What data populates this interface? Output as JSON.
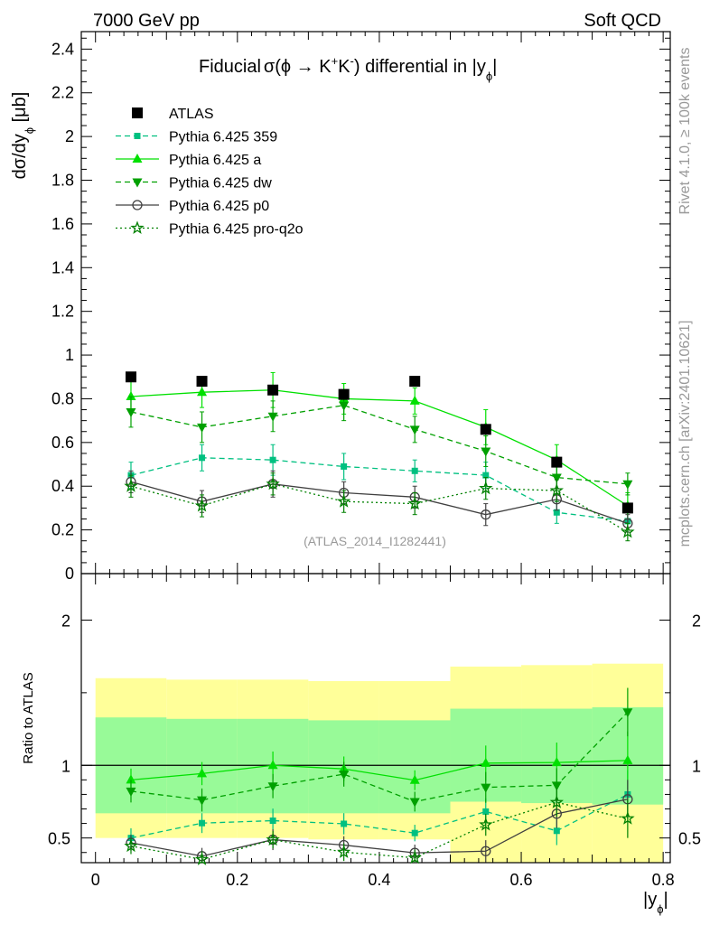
{
  "header": {
    "left": "7000 GeV pp",
    "right": "Soft QCD"
  },
  "watermark": {
    "rivet": "Rivet 4.1.0, ≥ 100k events",
    "mcplots": "mcplots.cern.ch [arXiv:2401.10621]"
  },
  "analysis_id": "(ATLAS_2014_I1282441)",
  "title_parts": {
    "a": "Fiducial",
    "b": "σ(ϕ →  K",
    "sup1": "+",
    "c": "K",
    "sup2": "-",
    "d": ") differential in |y",
    "sub": "ϕ",
    "e": "|"
  },
  "ylabel_parts": {
    "a": "dσ/dy",
    "sub": "ϕ",
    "b": " [μb]"
  },
  "xlabel_parts": {
    "a": "|y",
    "sub": "ϕ",
    "b": "|"
  },
  "ratio_ylabel": "Ratio to ATLAS",
  "colors": {
    "data": "#000000",
    "p359": "#00c080",
    "pa": "#00e000",
    "pdw": "#00a000",
    "pp0": "#404040",
    "pq2o": "#008000",
    "band_inner": "#98fa98",
    "band_outer": "#ffff99"
  },
  "chart_data": {
    "type": "line",
    "x": [
      0.05,
      0.15,
      0.25,
      0.35,
      0.45,
      0.55,
      0.65,
      0.75
    ],
    "bin_edges": [
      0.0,
      0.1,
      0.2,
      0.3,
      0.4,
      0.5,
      0.6,
      0.7,
      0.8
    ],
    "xlim": [
      -0.02,
      0.81
    ],
    "main": {
      "ylim": [
        0,
        2.48
      ],
      "yticks": [
        0,
        0.2,
        0.4,
        0.6,
        0.8,
        1,
        1.2,
        1.4,
        1.6,
        1.8,
        2,
        2.2,
        2.4
      ],
      "ytick_labels": [
        "0",
        "0.2",
        "0.4",
        "0.6",
        "0.8",
        "1",
        "1.2",
        "1.4",
        "1.6",
        "1.8",
        "2",
        "2.2",
        "2.4"
      ]
    },
    "ratio": {
      "ylim": [
        0.33,
        2.32
      ],
      "yticks": [
        0.5,
        1,
        2
      ],
      "ytick_labels": [
        "0.5",
        "1",
        "2"
      ],
      "band_inner": [
        [
          0.67,
          1.33
        ],
        [
          0.67,
          1.32
        ],
        [
          0.67,
          1.32
        ],
        [
          0.67,
          1.31
        ],
        [
          0.67,
          1.31
        ],
        [
          0.75,
          1.39
        ],
        [
          0.74,
          1.39
        ],
        [
          0.73,
          1.4
        ]
      ],
      "band_outer": [
        [
          0.5,
          1.6
        ],
        [
          0.5,
          1.59
        ],
        [
          0.5,
          1.59
        ],
        [
          0.49,
          1.58
        ],
        [
          0.49,
          1.58
        ],
        [
          0.33,
          1.68
        ],
        [
          0.33,
          1.69
        ],
        [
          0.33,
          1.7
        ]
      ]
    },
    "xticks": [
      0,
      0.2,
      0.4,
      0.6,
      0.8
    ],
    "xtick_labels": [
      "0",
      "0.2",
      "0.4",
      "0.6",
      "0.8"
    ],
    "data": {
      "name": "ATLAS",
      "values": [
        0.9,
        0.88,
        0.84,
        0.82,
        0.88,
        0.66,
        0.51,
        0.3
      ]
    },
    "series": [
      {
        "name": "Pythia 6.425 359",
        "key": "p359",
        "marker": "square-small",
        "dash": "6,4",
        "values": [
          0.45,
          0.53,
          0.52,
          0.49,
          0.47,
          0.45,
          0.28,
          0.24
        ],
        "errors": [
          0.06,
          0.06,
          0.07,
          0.06,
          0.05,
          0.06,
          0.05,
          0.05
        ]
      },
      {
        "name": "Pythia 6.425 a",
        "key": "pa",
        "marker": "triangle-up",
        "dash": "",
        "values": [
          0.81,
          0.83,
          0.84,
          0.8,
          0.79,
          0.67,
          0.52,
          0.31
        ],
        "errors": [
          0.07,
          0.07,
          0.08,
          0.07,
          0.06,
          0.08,
          0.07,
          0.06
        ]
      },
      {
        "name": "Pythia 6.425 dw",
        "key": "pdw",
        "marker": "triangle-down",
        "dash": "6,4",
        "values": [
          0.74,
          0.67,
          0.72,
          0.77,
          0.66,
          0.56,
          0.44,
          0.41
        ],
        "errors": [
          0.07,
          0.07,
          0.07,
          0.07,
          0.06,
          0.07,
          0.06,
          0.05
        ]
      },
      {
        "name": "Pythia 6.425 p0",
        "key": "pp0",
        "marker": "circle-open",
        "dash": "",
        "values": [
          0.42,
          0.33,
          0.41,
          0.37,
          0.35,
          0.27,
          0.34,
          0.23
        ],
        "errors": [
          0.05,
          0.05,
          0.06,
          0.05,
          0.05,
          0.05,
          0.05,
          0.04
        ]
      },
      {
        "name": "Pythia 6.425 pro-q2o",
        "key": "pq2o",
        "marker": "star-open",
        "dash": "2,3",
        "values": [
          0.4,
          0.31,
          0.41,
          0.33,
          0.32,
          0.39,
          0.38,
          0.19
        ],
        "errors": [
          0.05,
          0.05,
          0.05,
          0.05,
          0.05,
          0.05,
          0.05,
          0.04
        ]
      }
    ]
  }
}
